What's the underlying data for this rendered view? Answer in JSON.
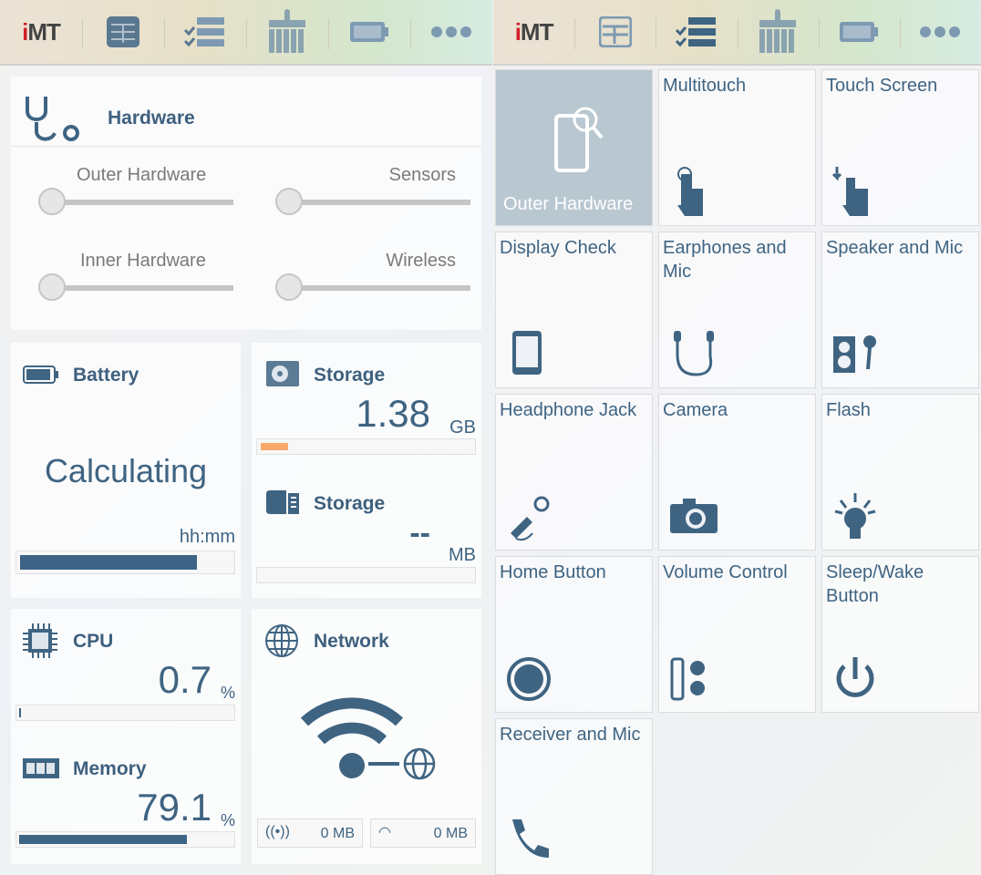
{
  "toolbar": {
    "logo": "iMT",
    "icons": [
      "dashboard-icon",
      "checklist-icon",
      "cleaner-broom-icon",
      "battery-icon",
      "more-icon"
    ]
  },
  "hardware": {
    "title": "Hardware",
    "sliders": [
      {
        "label": "Outer Hardware",
        "value": 0
      },
      {
        "label": "Sensors",
        "value": 0
      },
      {
        "label": "Inner Hardware",
        "value": 0
      },
      {
        "label": "Wireless",
        "value": 0
      }
    ]
  },
  "battery": {
    "title": "Battery",
    "status": "Calculating",
    "unit": "hh:mm",
    "level_percent": 84
  },
  "storage_internal": {
    "title": "Storage",
    "value": "1.38",
    "unit": "GB",
    "used_percent": 13
  },
  "storage_sd": {
    "title": "Storage",
    "value": "--",
    "unit": "MB",
    "used_percent": 0
  },
  "cpu": {
    "title": "CPU",
    "value": "0.7",
    "unit": "%",
    "percent": 0.7
  },
  "memory": {
    "title": "Memory",
    "value": "79.1",
    "unit": "%",
    "percent": 79.1
  },
  "network": {
    "title": "Network",
    "mobile": "0 MB",
    "wifi": "0 MB"
  },
  "tests": [
    "Outer Hardware",
    "Multitouch",
    "Touch Screen",
    "Display Check",
    "Earphones and Mic",
    "Speaker and Mic",
    "Headphone Jack",
    "Camera",
    "Flash",
    "Home Button",
    "Volume Control",
    "Sleep/Wake Button",
    "Receiver and Mic"
  ],
  "colors": {
    "accent": "#3d6485",
    "storage_bar": "#f8a86a",
    "selected_tile": "#b9c7d1"
  }
}
